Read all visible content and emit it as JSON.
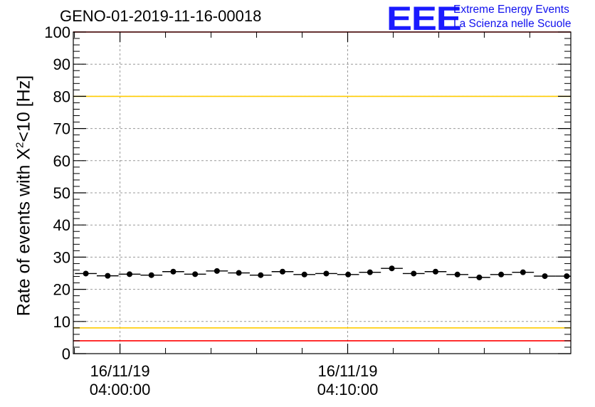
{
  "chart_data": {
    "type": "scatter",
    "title": "GENO-01-2019-11-16-00018",
    "ylabel_pre": "Rate of events with X",
    "ylabel_sup": "2",
    "ylabel_post": "<10 [Hz]",
    "ylim": [
      0,
      100
    ],
    "yticks": [
      "0",
      "10",
      "20",
      "30",
      "40",
      "50",
      "60",
      "70",
      "80",
      "90",
      "100"
    ],
    "xlim_minutes": [
      -2.05,
      19.8
    ],
    "xticks": [
      {
        "date": "16/11/19",
        "time": "04:00:00",
        "minute": 0
      },
      {
        "date": "16/11/19",
        "time": "04:10:00",
        "minute": 10
      }
    ],
    "grid": true,
    "bin_width_minutes": 0.96,
    "x_centers": [
      -1.5,
      -0.54,
      0.42,
      1.38,
      2.34,
      3.3,
      4.26,
      5.22,
      6.18,
      7.14,
      8.1,
      9.06,
      10.02,
      10.98,
      11.94,
      12.9,
      13.86,
      14.82,
      15.78,
      16.74,
      17.7,
      18.66,
      19.62
    ],
    "values": [
      24.9,
      24.2,
      24.7,
      24.4,
      25.5,
      24.7,
      25.7,
      25.1,
      24.4,
      25.5,
      24.6,
      24.9,
      24.6,
      25.3,
      26.5,
      24.9,
      25.5,
      24.6,
      23.7,
      24.6,
      25.3,
      24.1,
      24.1
    ],
    "reference_lines": [
      {
        "value": 100,
        "color": "#ff0000"
      },
      {
        "value": 80,
        "color": "#ffcc00"
      },
      {
        "value": 8,
        "color": "#ffcc00"
      },
      {
        "value": 4,
        "color": "#ff0000"
      }
    ],
    "marker_color": "#000000"
  },
  "logo": {
    "mark": "EEE",
    "line1": "Extreme Energy Events",
    "line2": "La Scienza nelle Scuole",
    "color": "#1a1aff"
  }
}
